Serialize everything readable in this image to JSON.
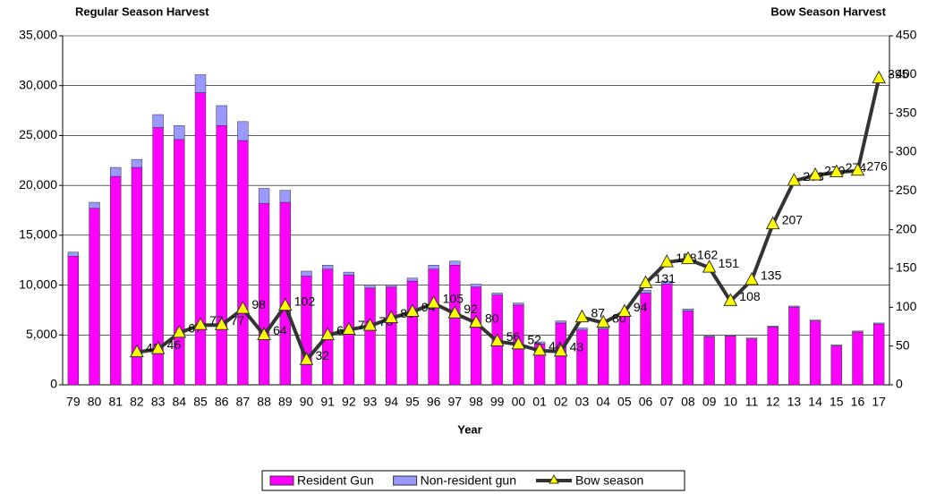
{
  "chart_data": {
    "type": "bar-line",
    "title_left": "Regular Season Harvest",
    "title_right": "Bow Season Harvest",
    "x_label": "Year",
    "categories": [
      "79",
      "80",
      "81",
      "82",
      "83",
      "84",
      "85",
      "86",
      "87",
      "88",
      "89",
      "90",
      "91",
      "92",
      "93",
      "94",
      "95",
      "96",
      "97",
      "98",
      "99",
      "00",
      "01",
      "02",
      "03",
      "04",
      "05",
      "06",
      "07",
      "08",
      "09",
      "10",
      "11",
      "12",
      "13",
      "14",
      "15",
      "16",
      "17"
    ],
    "series": [
      {
        "name": "Resident Gun",
        "color": "#ff00ff",
        "stack": true,
        "values": [
          12900,
          17700,
          20900,
          21800,
          25800,
          24600,
          29300,
          26000,
          24500,
          18200,
          18300,
          10900,
          11600,
          11000,
          9700,
          9800,
          10400,
          11600,
          12000,
          9800,
          9000,
          8000,
          4100,
          6200,
          5500,
          5600,
          7100,
          9200,
          10100,
          7400,
          4800,
          4900,
          4600,
          5800,
          7800,
          6400,
          3900,
          5300,
          6100
        ]
      },
      {
        "name": "Non-resident gun",
        "color": "#9999ff",
        "stack": true,
        "values": [
          400,
          600,
          900,
          800,
          1300,
          1400,
          1800,
          2000,
          1900,
          1500,
          1200,
          500,
          400,
          300,
          300,
          200,
          300,
          400,
          400,
          300,
          200,
          200,
          200,
          200,
          200,
          200,
          200,
          300,
          300,
          200,
          100,
          100,
          100,
          100,
          100,
          100,
          100,
          100,
          100
        ]
      },
      {
        "name": "Bow season",
        "color": "#333333",
        "marker_color": "#ffff00",
        "axis": "y2",
        "values": [
          null,
          null,
          null,
          42,
          46,
          67,
          77,
          77,
          98,
          64,
          102,
          32,
          64,
          71,
          76,
          86,
          94,
          105,
          92,
          80,
          56,
          52,
          44,
          43,
          87,
          80,
          94,
          131,
          158,
          162,
          151,
          108,
          135,
          207,
          263,
          270,
          274,
          276,
          395
        ]
      }
    ],
    "ylim": [
      0,
      35000
    ],
    "yticks": [
      0,
      {
        "value": 5000,
        "label": "5,000"
      },
      {
        "value": 10000,
        "label": "10,000"
      },
      {
        "value": 15000,
        "label": "15,000"
      },
      {
        "value": 20000,
        "label": "20,000"
      },
      {
        "value": 25000,
        "label": "25,000"
      },
      {
        "value": 30000,
        "label": "30,000"
      },
      {
        "value": 35000,
        "label": "35,000"
      }
    ],
    "y2lim": [
      0,
      450
    ],
    "y2ticks": [
      0,
      50,
      100,
      150,
      200,
      250,
      300,
      350,
      400,
      450
    ],
    "grid": true,
    "legend": "bottom"
  }
}
